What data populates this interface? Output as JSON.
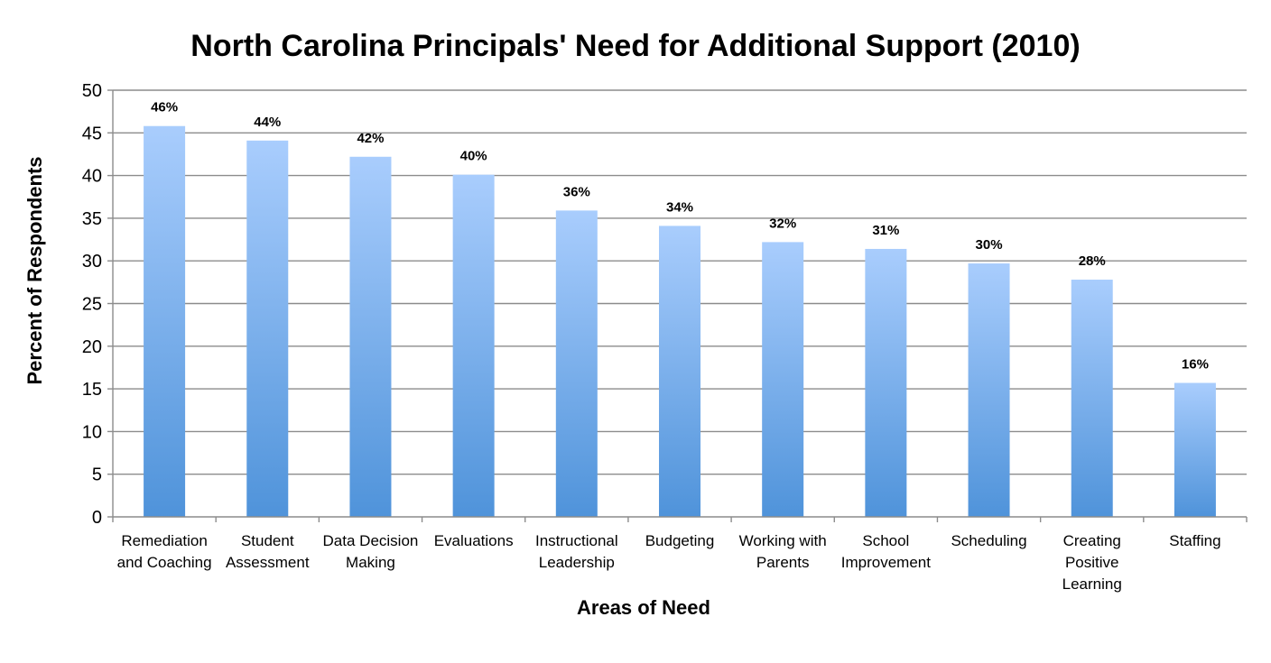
{
  "chart_data": {
    "type": "bar",
    "title": "North Carolina Principals' Need for Additional Support (2010)",
    "xlabel": "Areas of Need",
    "ylabel": "Percent of Respondents",
    "ylim": [
      0,
      50
    ],
    "ytick_step": 5,
    "grid": true,
    "categories": [
      [
        "Remediation",
        "and Coaching"
      ],
      [
        "Student",
        "Assessment"
      ],
      [
        "Data Decision",
        "Making"
      ],
      [
        "Evaluations"
      ],
      [
        "Instructional",
        "Leadership"
      ],
      [
        "Budgeting"
      ],
      [
        "Working with",
        "Parents"
      ],
      [
        "School",
        "Improvement"
      ],
      [
        "Scheduling"
      ],
      [
        "Creating",
        "Positive",
        "Learning"
      ],
      [
        "Staffing"
      ]
    ],
    "values": [
      45.8,
      44.1,
      42.2,
      40.1,
      35.9,
      34.1,
      32.2,
      31.4,
      29.7,
      27.8,
      15.7
    ],
    "data_labels": [
      "46%",
      "44%",
      "42%",
      "40%",
      "36%",
      "34%",
      "32%",
      "31%",
      "30%",
      "28%",
      "16%"
    ],
    "colors": {
      "bar_top": "#a9cdfd",
      "bar_bottom": "#4f93da",
      "grid": "#8c8c8c"
    }
  }
}
